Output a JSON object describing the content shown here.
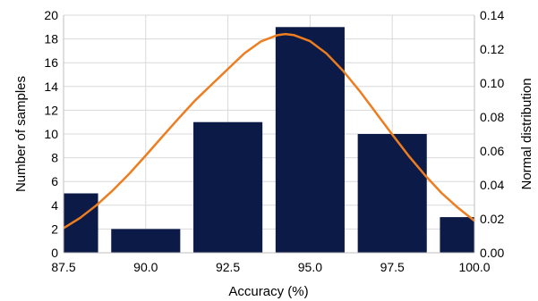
{
  "chart_data": {
    "type": "bar",
    "xlabel": "Accuracy (%)",
    "ylabel": "Number of samples",
    "y2label": "Normal distribution",
    "x_ticks": [
      "87.5",
      "90.0",
      "92.5",
      "95.0",
      "97.5",
      "100.0"
    ],
    "x_range": [
      87.5,
      100.0
    ],
    "ylim": [
      0,
      20
    ],
    "y_ticks": [
      "0",
      "2",
      "4",
      "6",
      "8",
      "10",
      "12",
      "14",
      "16",
      "18",
      "20"
    ],
    "y2lim": [
      0,
      0.14
    ],
    "y2_ticks": [
      "0.00",
      "0.02",
      "0.04",
      "0.06",
      "0.08",
      "0.10",
      "0.12",
      "0.14"
    ],
    "grid": true,
    "bars": [
      {
        "x": 87.5,
        "value": 5
      },
      {
        "x": 90.0,
        "value": 2
      },
      {
        "x": 92.5,
        "value": 11
      },
      {
        "x": 95.0,
        "value": 19
      },
      {
        "x": 97.5,
        "value": 10
      },
      {
        "x": 100.0,
        "value": 3
      }
    ],
    "normal_curve": {
      "axis": "secondary",
      "points": [
        [
          87.5,
          0.0145
        ],
        [
          88.0,
          0.0205
        ],
        [
          88.5,
          0.028
        ],
        [
          89.0,
          0.0368
        ],
        [
          89.5,
          0.0466
        ],
        [
          90.0,
          0.0573
        ],
        [
          90.5,
          0.0683
        ],
        [
          91.0,
          0.0792
        ],
        [
          91.5,
          0.0897
        ],
        [
          92.0,
          0.099
        ],
        [
          92.5,
          0.1083
        ],
        [
          93.0,
          0.1175
        ],
        [
          93.5,
          0.1245
        ],
        [
          94.0,
          0.1282
        ],
        [
          94.25,
          0.1289
        ],
        [
          94.5,
          0.1283
        ],
        [
          95.0,
          0.1247
        ],
        [
          95.5,
          0.1174
        ],
        [
          96.0,
          0.1073
        ],
        [
          96.5,
          0.0955
        ],
        [
          97.0,
          0.0826
        ],
        [
          97.5,
          0.0697
        ],
        [
          98.0,
          0.0571
        ],
        [
          98.5,
          0.0456
        ],
        [
          99.0,
          0.0352
        ],
        [
          99.5,
          0.0265
        ],
        [
          100.0,
          0.0188
        ]
      ]
    },
    "colors": {
      "bar": "#0b1a46",
      "curve": "#ee7d1f",
      "grid": "#d9d9d9",
      "axis": "#bfbfbf"
    }
  }
}
